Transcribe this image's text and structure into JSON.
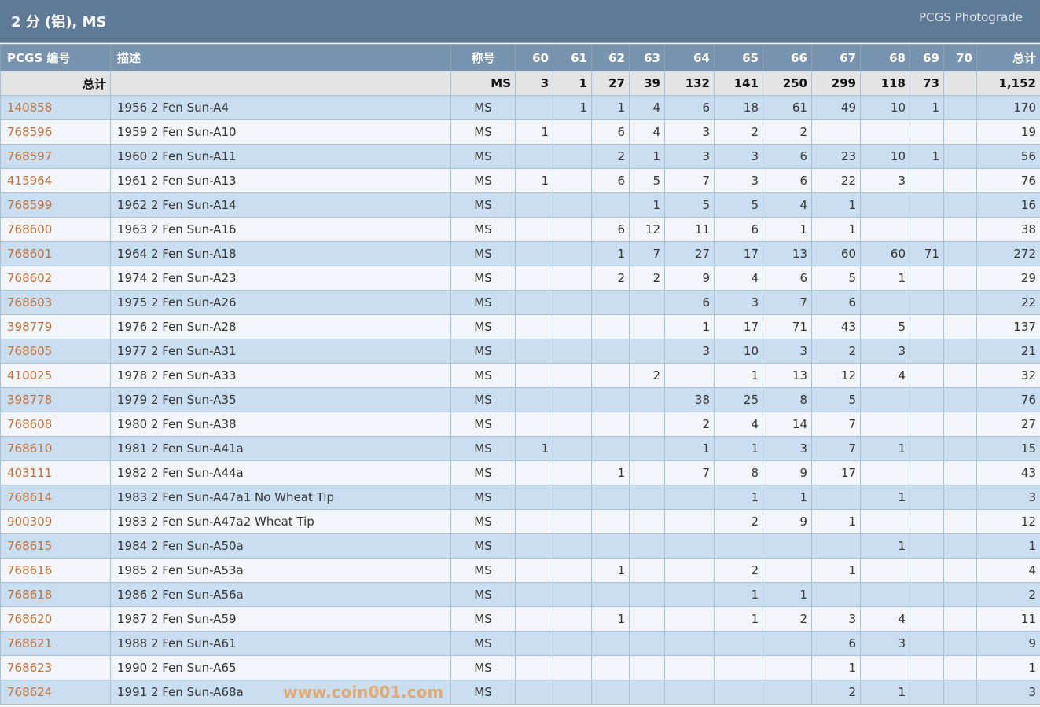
{
  "header": {
    "title": "2 分 (铝), MS",
    "brand": "PCGS Photograde"
  },
  "columns": {
    "code": "PCGS 编号",
    "desc": "描述",
    "designation": "称号",
    "grades": [
      "60",
      "61",
      "62",
      "63",
      "64",
      "65",
      "66",
      "67",
      "68",
      "69",
      "70"
    ],
    "total": "总计"
  },
  "total_row": {
    "label": "总计",
    "designation": "MS",
    "grades": [
      "3",
      "1",
      "27",
      "39",
      "132",
      "141",
      "250",
      "299",
      "118",
      "73",
      ""
    ],
    "total": "1,152"
  },
  "rows": [
    {
      "code": "140858",
      "desc": "1956 2 Fen Sun-A4",
      "des": "MS",
      "g": [
        "",
        "1",
        "1",
        "4",
        "6",
        "18",
        "61",
        "49",
        "10",
        "1",
        ""
      ],
      "total": "170"
    },
    {
      "code": "768596",
      "desc": "1959 2 Fen Sun-A10",
      "des": "MS",
      "g": [
        "1",
        "",
        "6",
        "4",
        "3",
        "2",
        "2",
        "",
        "",
        "",
        ""
      ],
      "total": "19"
    },
    {
      "code": "768597",
      "desc": "1960 2 Fen Sun-A11",
      "des": "MS",
      "g": [
        "",
        "",
        "2",
        "1",
        "3",
        "3",
        "6",
        "23",
        "10",
        "1",
        ""
      ],
      "total": "56"
    },
    {
      "code": "415964",
      "desc": "1961 2 Fen Sun-A13",
      "des": "MS",
      "g": [
        "1",
        "",
        "6",
        "5",
        "7",
        "3",
        "6",
        "22",
        "3",
        "",
        ""
      ],
      "total": "76"
    },
    {
      "code": "768599",
      "desc": "1962 2 Fen Sun-A14",
      "des": "MS",
      "g": [
        "",
        "",
        "",
        "1",
        "5",
        "5",
        "4",
        "1",
        "",
        "",
        ""
      ],
      "total": "16"
    },
    {
      "code": "768600",
      "desc": "1963 2 Fen Sun-A16",
      "des": "MS",
      "g": [
        "",
        "",
        "6",
        "12",
        "11",
        "6",
        "1",
        "1",
        "",
        "",
        ""
      ],
      "total": "38"
    },
    {
      "code": "768601",
      "desc": "1964 2 Fen Sun-A18",
      "des": "MS",
      "g": [
        "",
        "",
        "1",
        "7",
        "27",
        "17",
        "13",
        "60",
        "60",
        "71",
        ""
      ],
      "total": "272"
    },
    {
      "code": "768602",
      "desc": "1974 2 Fen Sun-A23",
      "des": "MS",
      "g": [
        "",
        "",
        "2",
        "2",
        "9",
        "4",
        "6",
        "5",
        "1",
        "",
        ""
      ],
      "total": "29"
    },
    {
      "code": "768603",
      "desc": "1975 2 Fen Sun-A26",
      "des": "MS",
      "g": [
        "",
        "",
        "",
        "",
        "6",
        "3",
        "7",
        "6",
        "",
        "",
        ""
      ],
      "total": "22"
    },
    {
      "code": "398779",
      "desc": "1976 2 Fen Sun-A28",
      "des": "MS",
      "g": [
        "",
        "",
        "",
        "",
        "1",
        "17",
        "71",
        "43",
        "5",
        "",
        ""
      ],
      "total": "137"
    },
    {
      "code": "768605",
      "desc": "1977 2 Fen Sun-A31",
      "des": "MS",
      "g": [
        "",
        "",
        "",
        "",
        "3",
        "10",
        "3",
        "2",
        "3",
        "",
        ""
      ],
      "total": "21"
    },
    {
      "code": "410025",
      "desc": "1978 2 Fen Sun-A33",
      "des": "MS",
      "g": [
        "",
        "",
        "",
        "2",
        "",
        "1",
        "13",
        "12",
        "4",
        "",
        ""
      ],
      "total": "32"
    },
    {
      "code": "398778",
      "desc": "1979 2 Fen Sun-A35",
      "des": "MS",
      "g": [
        "",
        "",
        "",
        "",
        "38",
        "25",
        "8",
        "5",
        "",
        "",
        ""
      ],
      "total": "76"
    },
    {
      "code": "768608",
      "desc": "1980 2 Fen Sun-A38",
      "des": "MS",
      "g": [
        "",
        "",
        "",
        "",
        "2",
        "4",
        "14",
        "7",
        "",
        "",
        ""
      ],
      "total": "27"
    },
    {
      "code": "768610",
      "desc": "1981 2 Fen Sun-A41a",
      "des": "MS",
      "g": [
        "1",
        "",
        "",
        "",
        "1",
        "1",
        "3",
        "7",
        "1",
        "",
        ""
      ],
      "total": "15"
    },
    {
      "code": "403111",
      "desc": "1982 2 Fen Sun-A44a",
      "des": "MS",
      "g": [
        "",
        "",
        "1",
        "",
        "7",
        "8",
        "9",
        "17",
        "",
        "",
        ""
      ],
      "total": "43"
    },
    {
      "code": "768614",
      "desc": "1983 2 Fen Sun-A47a1 No Wheat Tip",
      "des": "MS",
      "g": [
        "",
        "",
        "",
        "",
        "",
        "1",
        "1",
        "",
        "1",
        "",
        ""
      ],
      "total": "3"
    },
    {
      "code": "900309",
      "desc": "1983 2 Fen Sun-A47a2 Wheat Tip",
      "des": "MS",
      "g": [
        "",
        "",
        "",
        "",
        "",
        "2",
        "9",
        "1",
        "",
        "",
        ""
      ],
      "total": "12"
    },
    {
      "code": "768615",
      "desc": "1984 2 Fen Sun-A50a",
      "des": "MS",
      "g": [
        "",
        "",
        "",
        "",
        "",
        "",
        "",
        "",
        "1",
        "",
        ""
      ],
      "total": "1"
    },
    {
      "code": "768616",
      "desc": "1985 2 Fen Sun-A53a",
      "des": "MS",
      "g": [
        "",
        "",
        "1",
        "",
        "",
        "2",
        "",
        "1",
        "",
        "",
        ""
      ],
      "total": "4"
    },
    {
      "code": "768618",
      "desc": "1986 2 Fen Sun-A56a",
      "des": "MS",
      "g": [
        "",
        "",
        "",
        "",
        "",
        "1",
        "1",
        "",
        "",
        "",
        ""
      ],
      "total": "2"
    },
    {
      "code": "768620",
      "desc": "1987 2 Fen Sun-A59",
      "des": "MS",
      "g": [
        "",
        "",
        "1",
        "",
        "",
        "1",
        "2",
        "3",
        "4",
        "",
        ""
      ],
      "total": "11"
    },
    {
      "code": "768621",
      "desc": "1988 2 Fen Sun-A61",
      "des": "MS",
      "g": [
        "",
        "",
        "",
        "",
        "",
        "",
        "",
        "6",
        "3",
        "",
        ""
      ],
      "total": "9"
    },
    {
      "code": "768623",
      "desc": "1990 2 Fen Sun-A65",
      "des": "MS",
      "g": [
        "",
        "",
        "",
        "",
        "",
        "",
        "",
        "1",
        "",
        "",
        ""
      ],
      "total": "1"
    },
    {
      "code": "768624",
      "desc": "1991 2 Fen Sun-A68a",
      "des": "MS",
      "g": [
        "",
        "",
        "",
        "",
        "",
        "",
        "",
        "2",
        "1",
        "",
        ""
      ],
      "total": "3"
    }
  ],
  "watermark": "www.coin001.com",
  "colors": {
    "header": "#5e7a97",
    "column_header": "#7793ae",
    "row_odd": "#c9def1",
    "row_even": "#f2f6fa",
    "link": "#c0703a"
  }
}
